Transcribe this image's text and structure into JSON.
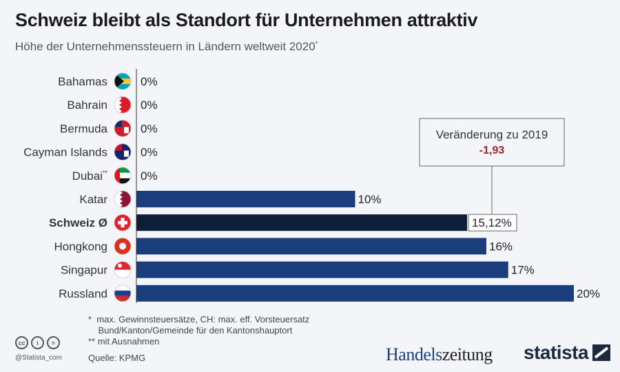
{
  "chart_data": {
    "type": "bar",
    "title": "Schweiz bleibt als Standort für Unternehmen attraktiv",
    "subtitle": "Höhe der Unternehmenssteuern in Ländern weltweit 2020",
    "subtitle_marker": "*",
    "categories": [
      "Bahamas",
      "Bahrain",
      "Bermuda",
      "Cayman Islands",
      "Dubai",
      "Katar",
      "Schweiz Ø",
      "Hongkong",
      "Singapur",
      "Russland"
    ],
    "category_suffix": [
      "",
      "",
      "",
      "",
      "**",
      "",
      "",
      "",
      "",
      ""
    ],
    "values": [
      0,
      0,
      0,
      0,
      0,
      10,
      15.12,
      16,
      17,
      20
    ],
    "value_labels": [
      "0%",
      "0%",
      "0%",
      "0%",
      "0%",
      "10%",
      "15,12%",
      "16%",
      "17%",
      "20%"
    ],
    "highlight_index": 6,
    "xlim": [
      0,
      20
    ],
    "colors": {
      "bar": "#1a3d7c",
      "highlight": "#0f1e38",
      "delta": "#9a2530"
    },
    "annotation": {
      "label": "Veränderung zu 2019",
      "value": "-1,93"
    }
  },
  "footer": {
    "notes": [
      "*  max. Gewinnsteuersätze, CH: max. eff. Vorsteuersatz",
      "    Bund/Kanton/Gemeinde für den Kantonshauptort",
      "** mit Ausnahmen"
    ],
    "source": "Quelle: KPMG",
    "handle": "@Statista_com",
    "brand1a": "Handels",
    "brand1b": "zeitung",
    "brand2": "statista"
  }
}
